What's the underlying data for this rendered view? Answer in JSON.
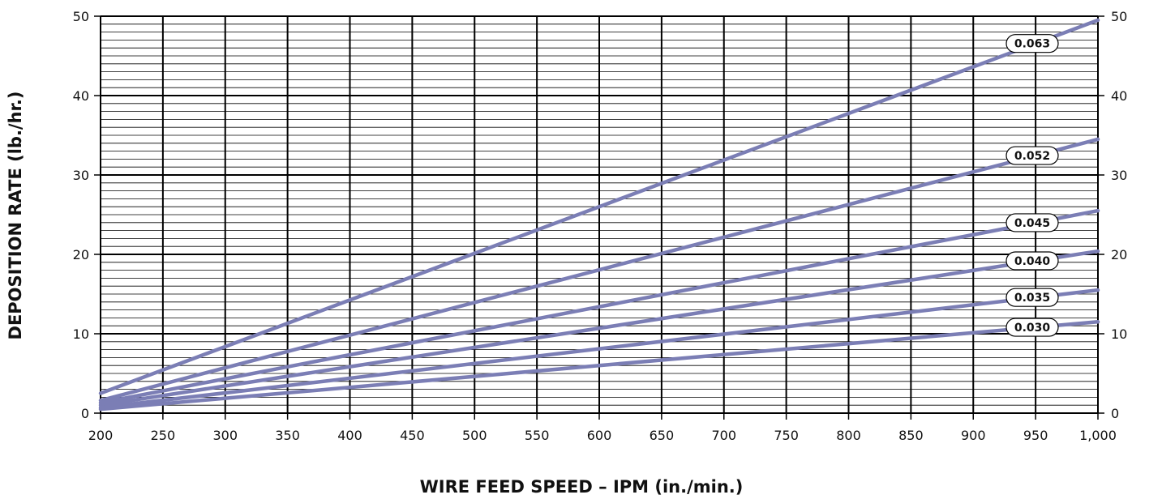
{
  "chart_data": {
    "type": "line",
    "title": "",
    "xlabel": "WIRE FEED SPEED – IPM (in./min.)",
    "ylabel": "DEPOSITION RATE (lb./hr.)",
    "xlim": [
      200,
      1000
    ],
    "ylim": [
      0,
      50
    ],
    "grid": true,
    "x_ticks": [
      200,
      250,
      300,
      350,
      400,
      450,
      500,
      550,
      600,
      650,
      700,
      750,
      800,
      850,
      900,
      950,
      1000
    ],
    "x_tick_labels": [
      "200",
      "250",
      "300",
      "350",
      "400",
      "450",
      "500",
      "550",
      "600",
      "650",
      "700",
      "750",
      "800",
      "850",
      "900",
      "950",
      "1,000"
    ],
    "y_ticks": [
      0,
      10,
      20,
      30,
      40,
      50
    ],
    "y_tick_labels": [
      "0",
      "10",
      "20",
      "30",
      "40",
      "50"
    ],
    "right_y_tick_labels": [
      "0",
      "10",
      "20",
      "30",
      "40",
      "50"
    ],
    "line_color": "#7b7eb5",
    "series": [
      {
        "name": "0.063",
        "x": [
          200,
          1000
        ],
        "values": [
          2.5,
          49.5
        ]
      },
      {
        "name": "0.052",
        "x": [
          200,
          1000
        ],
        "values": [
          1.6,
          34.5
        ]
      },
      {
        "name": "0.045",
        "x": [
          200,
          1000
        ],
        "values": [
          1.3,
          25.5
        ]
      },
      {
        "name": "0.040",
        "x": [
          200,
          1000
        ],
        "values": [
          1.0,
          20.4
        ]
      },
      {
        "name": "0.035",
        "x": [
          200,
          1000
        ],
        "values": [
          0.7,
          15.5
        ]
      },
      {
        "name": "0.030",
        "x": [
          200,
          1000
        ],
        "values": [
          0.5,
          11.5
        ]
      }
    ]
  }
}
